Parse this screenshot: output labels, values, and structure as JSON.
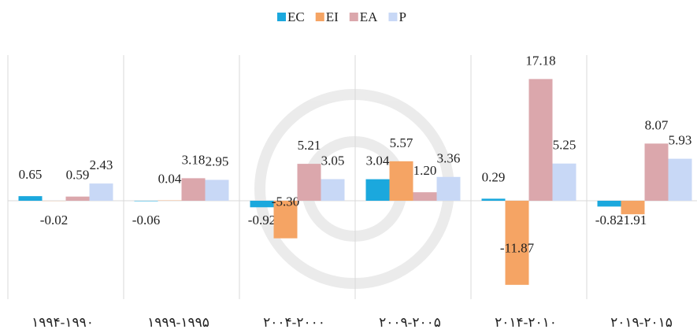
{
  "chart_data": {
    "type": "bar",
    "categories": [
      "۱۹۹۴-۱۹۹۰",
      "۱۹۹۹-۱۹۹۵",
      "۲۰۰۴-۲۰۰۰",
      "۲۰۰۹-۲۰۰۵",
      "۲۰۱۴-۲۰۱۰",
      "۲۰۱۹-۲۰۱۵"
    ],
    "series": [
      {
        "name": "EC",
        "color": "#1ba8dd",
        "values": [
          0.65,
          -0.06,
          -0.92,
          3.04,
          0.29,
          -0.82
        ],
        "value_labels": [
          "0.65",
          "-0.06",
          "-0.92",
          "3.04",
          "0.29",
          "-0.82"
        ]
      },
      {
        "name": "EI",
        "color": "#f5a464",
        "values": [
          -0.02,
          0.04,
          -5.3,
          5.57,
          -11.87,
          -1.91
        ],
        "value_labels": [
          "-0.02",
          "0.04",
          "-5.30",
          "5.57",
          "-11.87",
          "-1.91"
        ]
      },
      {
        "name": "EA",
        "color": "#dba7ac",
        "values": [
          0.59,
          3.18,
          5.21,
          1.2,
          17.18,
          8.07
        ],
        "value_labels": [
          "0.59",
          "3.18",
          "5.21",
          "1.20",
          "17.18",
          "8.07"
        ]
      },
      {
        "name": "P",
        "color": "#c8d8f6",
        "values": [
          2.43,
          2.95,
          3.05,
          3.36,
          5.25,
          5.93
        ],
        "value_labels": [
          "2.43",
          "2.95",
          "3.05",
          "3.36",
          "5.25",
          "5.93"
        ]
      }
    ],
    "ylim": [
      -13,
      19
    ],
    "legend": "top"
  }
}
